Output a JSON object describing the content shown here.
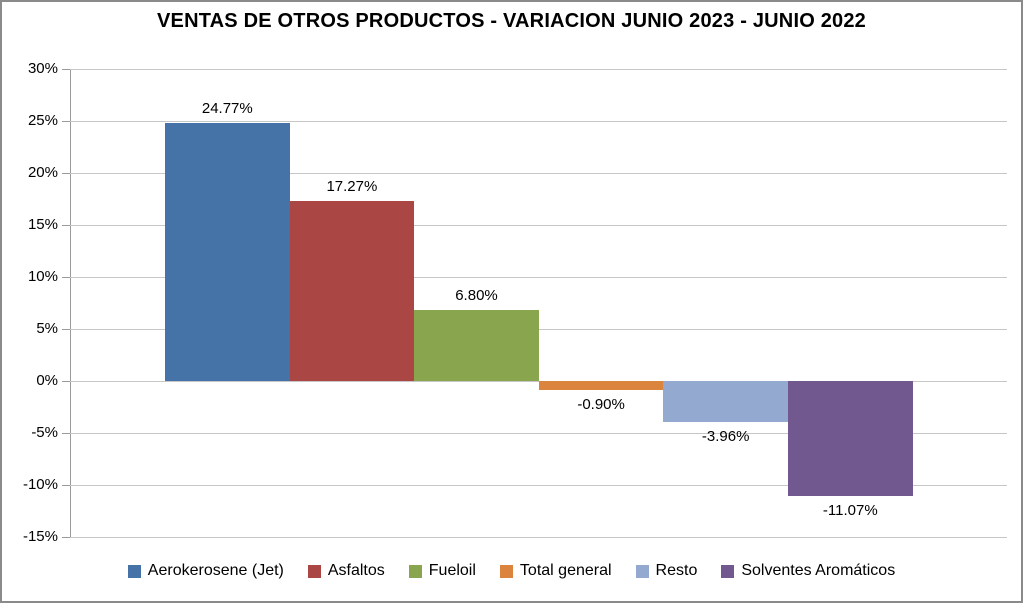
{
  "title": "VENTAS DE OTROS PRODUCTOS - VARIACION JUNIO 2023 - JUNIO 2022",
  "chart_data": {
    "type": "bar",
    "title": "VENTAS DE OTROS PRODUCTOS - VARIACION JUNIO 2023 - JUNIO 2022",
    "categories": [
      "Aerokerosene (Jet)",
      "Asfaltos",
      "Fueloil",
      "Total general",
      "Resto",
      "Solventes Aromáticos"
    ],
    "values": [
      24.77,
      17.27,
      6.8,
      -0.9,
      -3.96,
      -11.07
    ],
    "data_labels": [
      "24.77%",
      "17.27%",
      "6.80%",
      "-0.90%",
      "-3.96%",
      "-11.07%"
    ],
    "colors": [
      "#4572A7",
      "#AA4643",
      "#89A54E",
      "#DB843D",
      "#93A9CF",
      "#71588F"
    ],
    "xlabel": "",
    "ylabel": "",
    "ylim": [
      -15,
      30
    ],
    "ytick_step": 5,
    "ytick_labels": [
      "30%",
      "25%",
      "20%",
      "15%",
      "10%",
      "5%",
      "0%",
      "-5%",
      "-10%",
      "-15%"
    ],
    "grid": true,
    "legend_position": "bottom",
    "styles": {
      "gridline_color": "#c6c6c6",
      "axis_color": "#9a9a9a",
      "background": "#ffffff",
      "text_color": "#000000"
    }
  }
}
